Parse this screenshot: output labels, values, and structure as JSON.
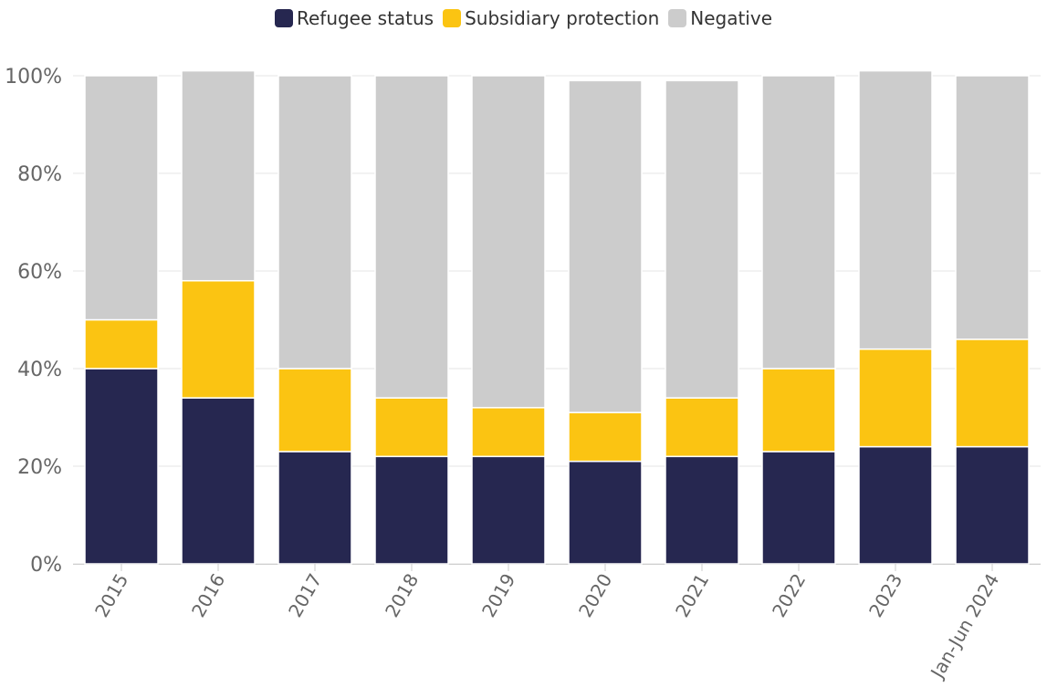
{
  "chart_data": {
    "type": "bar",
    "stacked": true,
    "percent_scale": true,
    "categories": [
      "2015",
      "2016",
      "2017",
      "2018",
      "2019",
      "2020",
      "2021",
      "2022",
      "2023",
      "Jan-Jun 2024"
    ],
    "series": [
      {
        "name": "Refugee status",
        "color": "#262750",
        "values": [
          40,
          34,
          23,
          22,
          22,
          21,
          22,
          23,
          24,
          24
        ]
      },
      {
        "name": "Subsidiary protection",
        "color": "#fbc412",
        "values": [
          10,
          24,
          17,
          12,
          10,
          10,
          12,
          17,
          20,
          22
        ]
      },
      {
        "name": "Negative",
        "color": "#cccccc",
        "values": [
          50,
          43,
          60,
          66,
          68,
          68,
          65,
          60,
          57,
          54
        ]
      }
    ],
    "ylim": [
      0,
      100
    ],
    "yticks": [
      "0%",
      "20%",
      "40%",
      "60%",
      "80%",
      "100%"
    ],
    "legend_position": "top-center",
    "grid": true
  }
}
